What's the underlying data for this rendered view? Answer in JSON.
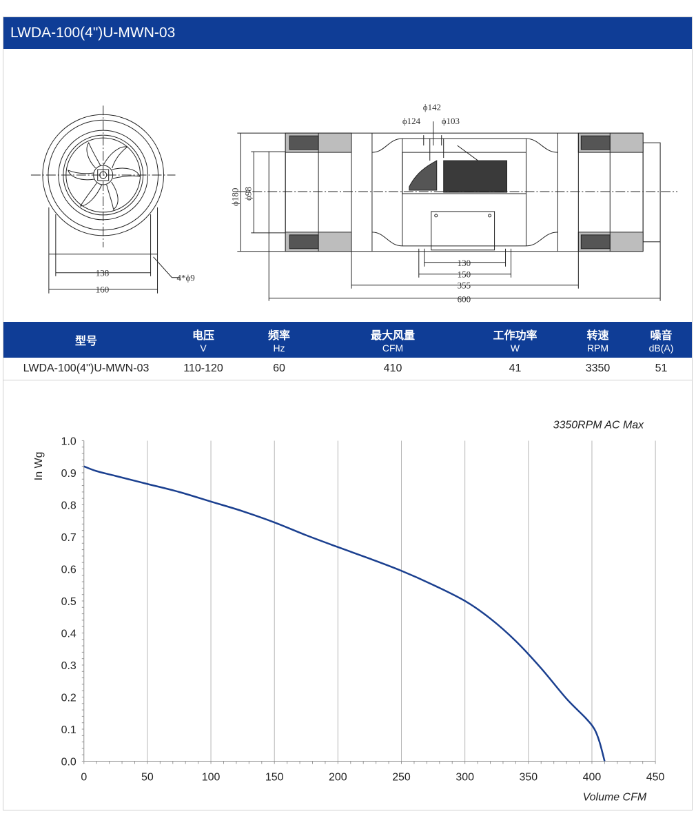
{
  "header": {
    "title": "LWDA-100(4\")U-MWN-03"
  },
  "drawing": {
    "dims": {
      "d142": "ϕ142",
      "d124": "ϕ124",
      "d103": "ϕ103",
      "d180": "ϕ180",
      "d98": "ϕ98",
      "w130": "130",
      "w150": "150",
      "w355": "355",
      "w600": "600",
      "w138": "138",
      "w160": "160",
      "holes": "4*ϕ9"
    }
  },
  "table": {
    "headers": [
      {
        "label": "型号",
        "unit": ""
      },
      {
        "label": "电压",
        "unit": "V"
      },
      {
        "label": "频率",
        "unit": "Hz"
      },
      {
        "label": "最大风量",
        "unit": "CFM"
      },
      {
        "label": "工作功率",
        "unit": "W"
      },
      {
        "label": "转速",
        "unit": "RPM"
      },
      {
        "label": "噪音",
        "unit": "dB(A)"
      }
    ],
    "row": [
      "LWDA-100(4'')U-MWN-03",
      "110-120",
      "60",
      "410",
      "41",
      "3350",
      "51"
    ]
  },
  "chart_data": {
    "type": "line",
    "title": "3350RPM AC Max",
    "xlabel": "Volume CFM",
    "ylabel": "In Wg",
    "xlim": [
      0,
      450
    ],
    "ylim": [
      0,
      1.0
    ],
    "xticks": [
      0,
      50,
      100,
      150,
      200,
      250,
      300,
      350,
      400,
      450
    ],
    "yticks": [
      0.0,
      0.1,
      0.2,
      0.3,
      0.4,
      0.5,
      0.6,
      0.7,
      0.8,
      0.9,
      1.0
    ],
    "ytick_labels": [
      "0.0",
      "0.1",
      "0.2",
      "0.3",
      "0.4",
      "0.5",
      "0.6",
      "0.7",
      "0.8",
      "0.9",
      "1.0"
    ],
    "grid": "vertical",
    "color": "#1a3f8f",
    "series": [
      {
        "x": [
          0,
          10,
          25,
          50,
          75,
          100,
          125,
          150,
          175,
          200,
          225,
          250,
          275,
          300,
          320,
          340,
          360,
          380,
          395,
          402,
          406,
          410
        ],
        "y": [
          0.92,
          0.905,
          0.89,
          0.865,
          0.84,
          0.81,
          0.78,
          0.745,
          0.705,
          0.668,
          0.632,
          0.594,
          0.55,
          0.5,
          0.445,
          0.375,
          0.29,
          0.195,
          0.135,
          0.1,
          0.06,
          0.0
        ]
      }
    ]
  }
}
